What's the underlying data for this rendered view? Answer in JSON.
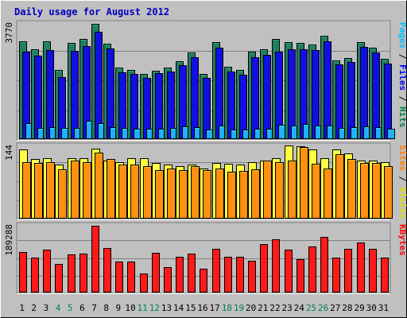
{
  "chart_data": {
    "type": "bar",
    "title": "Daily usage for August 2012",
    "categories": [
      "1",
      "2",
      "3",
      "4",
      "5",
      "6",
      "7",
      "8",
      "9",
      "10",
      "11",
      "12",
      "13",
      "14",
      "15",
      "16",
      "17",
      "18",
      "19",
      "20",
      "21",
      "22",
      "23",
      "24",
      "25",
      "26",
      "27",
      "28",
      "29",
      "30",
      "31"
    ],
    "weekend_days": [
      "4",
      "5",
      "11",
      "12",
      "18",
      "19",
      "25",
      "26"
    ],
    "panels": [
      {
        "name": "top",
        "max_label": "3770",
        "ymax": 3770,
        "legend": [
          {
            "text": "Pages",
            "color": "#00c0ff"
          },
          {
            "text": " / ",
            "color": "#000000"
          },
          {
            "text": "Files",
            "color": "#0000ff"
          },
          {
            "text": " / ",
            "color": "#000000"
          },
          {
            "text": "Hits",
            "color": "#008040"
          }
        ],
        "series": [
          {
            "name": "Hits",
            "color": "#208060",
            "values": [
              3200,
              2930,
              3210,
              2270,
              3140,
              3280,
              3770,
              3120,
              2330,
              2270,
              2120,
              2240,
              2350,
              2550,
              2830,
              2140,
              3160,
              2360,
              2270,
              2870,
              2930,
              3280,
              3180,
              3140,
              3090,
              3380,
              2580,
              2640,
              3180,
              2990,
              2620
            ]
          },
          {
            "name": "Files",
            "color": "#1010e0",
            "values": [
              2870,
              2720,
              2900,
              2040,
              2890,
              3050,
              3520,
              2960,
              2180,
              2140,
              1990,
              2160,
              2200,
              2420,
              2690,
              2000,
              2990,
              2220,
              2110,
              2680,
              2760,
              2870,
              2950,
              2950,
              2900,
              3200,
              2440,
              2520,
              3020,
              2830,
              2460
            ]
          },
          {
            "name": "Pages",
            "color": "#20b0ff",
            "values": [
              520,
              360,
              380,
              370,
              370,
              610,
              510,
              380,
              370,
              340,
              340,
              340,
              370,
              410,
              380,
              310,
              440,
              310,
              310,
              340,
              340,
              460,
              440,
              500,
              430,
              440,
              370,
              380,
              420,
              400,
              340
            ]
          }
        ]
      },
      {
        "name": "middle",
        "max_label": "144",
        "ymax": 144,
        "legend": [
          {
            "text": "Sites",
            "color": "#ff8000"
          },
          {
            "text": " / ",
            "color": "#000000"
          },
          {
            "text": "Visits",
            "color": "#e0e000"
          }
        ],
        "series": [
          {
            "name": "Visits",
            "color": "#ffff40",
            "values": [
              138,
              118,
              120,
              108,
              121,
              121,
              139,
              115,
              113,
              121,
              121,
              111,
              107,
              104,
              108,
              99,
              110,
              109,
              107,
              112,
              116,
              121,
              145,
              144,
              137,
              121,
              137,
              129,
              115,
              116,
              112
            ]
          },
          {
            "name": "Sites",
            "color": "#ff9010",
            "values": [
              112,
              110,
              112,
              98,
              115,
              112,
              132,
              119,
              107,
              107,
              105,
              97,
              100,
              96,
              104,
              96,
              99,
              93,
              95,
              98,
              116,
              113,
              115,
              142,
              109,
              100,
              128,
              119,
              110,
              111,
              105
            ]
          }
        ]
      },
      {
        "name": "bottom",
        "max_label": "189288",
        "ymax": 189288,
        "legend": [
          {
            "text": "KBytes",
            "color": "#ff0000"
          }
        ],
        "series": [
          {
            "name": "KBytes",
            "color": "#ff1a1a",
            "values": [
              115000,
              100000,
              122000,
              80000,
              109000,
              110000,
              189000,
              127000,
              88000,
              89000,
              54000,
              113000,
              73000,
              101000,
              111000,
              67000,
              124000,
              101000,
              101000,
              91000,
              138000,
              152000,
              122000,
              95000,
              130000,
              157000,
              100000,
              123000,
              142000,
              125000,
              99000
            ]
          }
        ]
      }
    ]
  }
}
